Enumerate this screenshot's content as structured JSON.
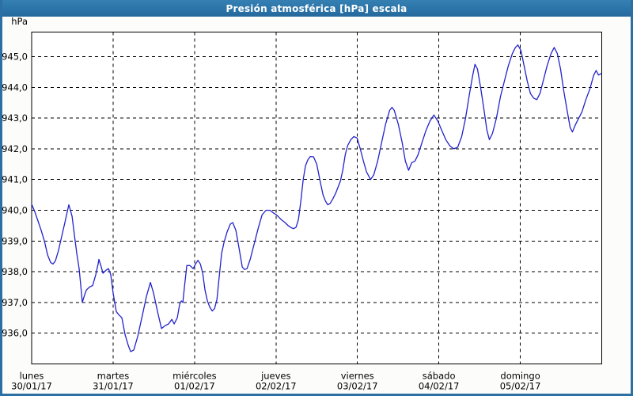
{
  "window": {
    "title": "Presión atmosférica [hPa] escala"
  },
  "colors": {
    "titlebar_bg": "#2b74a9",
    "titlebar_text": "#ffffff",
    "window_border": "#2b6fa3",
    "margin_bg": "#fcfdfa",
    "plot_bg": "#ffffff",
    "plot_border": "#000000",
    "gridline": "#000000",
    "line": "#2222cc",
    "label_text": "#000000"
  },
  "chart_data": {
    "type": "line",
    "title": "Presión atmosférica [hPa] escala",
    "ylabel": "hPa",
    "unit": "hPa",
    "decimal_separator": ",",
    "grid": "dashed",
    "legend": "none",
    "ylim": [
      935.0,
      945.8
    ],
    "yticks": [
      945,
      944,
      943,
      942,
      941,
      940,
      939,
      938,
      937,
      936
    ],
    "ytick_labels": [
      "945,0",
      "944,0",
      "943,0",
      "942,0",
      "941,0",
      "940,0",
      "939,0",
      "938,0",
      "937,0",
      "936,0"
    ],
    "x_axis": {
      "unit": "days",
      "range_days": [
        0,
        7
      ],
      "labels": [
        {
          "day": "lunes",
          "date": "30/01/17",
          "position": 0
        },
        {
          "day": "martes",
          "date": "31/01/17",
          "position": 1
        },
        {
          "day": "miércoles",
          "date": "01/02/17",
          "position": 2
        },
        {
          "day": "jueves",
          "date": "02/02/17",
          "position": 3
        },
        {
          "day": "viernes",
          "date": "03/02/17",
          "position": 4
        },
        {
          "day": "sábado",
          "date": "04/02/17",
          "position": 5
        },
        {
          "day": "domingo",
          "date": "05/02/17",
          "position": 6
        }
      ]
    },
    "series": [
      {
        "name": "Presión atmosférica [hPa]",
        "color": "#2222cc",
        "points": [
          [
            0.0,
            940.2
          ],
          [
            0.039,
            939.95
          ],
          [
            0.078,
            939.65
          ],
          [
            0.117,
            939.35
          ],
          [
            0.156,
            939.0
          ],
          [
            0.195,
            938.55
          ],
          [
            0.233,
            938.3
          ],
          [
            0.262,
            938.25
          ],
          [
            0.291,
            938.35
          ],
          [
            0.33,
            938.7
          ],
          [
            0.369,
            939.15
          ],
          [
            0.408,
            939.6
          ],
          [
            0.437,
            939.95
          ],
          [
            0.457,
            940.18
          ],
          [
            0.476,
            940.0
          ],
          [
            0.496,
            939.8
          ],
          [
            0.525,
            939.2
          ],
          [
            0.554,
            938.6
          ],
          [
            0.583,
            938.1
          ],
          [
            0.612,
            937.3
          ],
          [
            0.622,
            937.0
          ],
          [
            0.651,
            937.25
          ],
          [
            0.671,
            937.4
          ],
          [
            0.71,
            937.5
          ],
          [
            0.749,
            937.55
          ],
          [
            0.787,
            937.9
          ],
          [
            0.816,
            938.25
          ],
          [
            0.826,
            938.4
          ],
          [
            0.855,
            938.15
          ],
          [
            0.875,
            937.95
          ],
          [
            0.914,
            938.05
          ],
          [
            0.943,
            938.1
          ],
          [
            0.972,
            937.9
          ],
          [
            1.001,
            937.3
          ],
          [
            1.04,
            936.7
          ],
          [
            1.069,
            936.6
          ],
          [
            1.108,
            936.5
          ],
          [
            1.147,
            935.95
          ],
          [
            1.186,
            935.6
          ],
          [
            1.215,
            935.4
          ],
          [
            1.254,
            935.45
          ],
          [
            1.303,
            935.9
          ],
          [
            1.361,
            936.6
          ],
          [
            1.41,
            937.2
          ],
          [
            1.458,
            937.65
          ],
          [
            1.497,
            937.3
          ],
          [
            1.546,
            936.7
          ],
          [
            1.594,
            936.15
          ],
          [
            1.643,
            936.25
          ],
          [
            1.682,
            936.3
          ],
          [
            1.721,
            936.45
          ],
          [
            1.75,
            936.3
          ],
          [
            1.789,
            936.5
          ],
          [
            1.818,
            936.95
          ],
          [
            1.838,
            937.05
          ],
          [
            1.857,
            937.0
          ],
          [
            1.876,
            937.5
          ],
          [
            1.905,
            938.2
          ],
          [
            1.944,
            938.2
          ],
          [
            1.983,
            938.1
          ],
          [
            2.013,
            938.25
          ],
          [
            2.042,
            938.37
          ],
          [
            2.071,
            938.25
          ],
          [
            2.1,
            937.95
          ],
          [
            2.129,
            937.4
          ],
          [
            2.158,
            937.05
          ],
          [
            2.187,
            936.85
          ],
          [
            2.217,
            936.72
          ],
          [
            2.246,
            936.8
          ],
          [
            2.275,
            937.1
          ],
          [
            2.304,
            937.85
          ],
          [
            2.333,
            938.6
          ],
          [
            2.362,
            938.95
          ],
          [
            2.401,
            939.3
          ],
          [
            2.44,
            939.55
          ],
          [
            2.469,
            939.6
          ],
          [
            2.508,
            939.35
          ],
          [
            2.547,
            938.75
          ],
          [
            2.586,
            938.15
          ],
          [
            2.615,
            938.07
          ],
          [
            2.645,
            938.1
          ],
          [
            2.683,
            938.4
          ],
          [
            2.732,
            938.9
          ],
          [
            2.781,
            939.4
          ],
          [
            2.829,
            939.85
          ],
          [
            2.878,
            940.0
          ],
          [
            2.926,
            940.0
          ],
          [
            2.975,
            939.9
          ],
          [
            3.007,
            939.85
          ],
          [
            3.062,
            939.7
          ],
          [
            3.111,
            939.6
          ],
          [
            3.15,
            939.5
          ],
          [
            3.189,
            939.43
          ],
          [
            3.218,
            939.4
          ],
          [
            3.247,
            939.45
          ],
          [
            3.276,
            939.7
          ],
          [
            3.305,
            940.3
          ],
          [
            3.334,
            941.0
          ],
          [
            3.363,
            941.45
          ],
          [
            3.393,
            941.65
          ],
          [
            3.422,
            941.75
          ],
          [
            3.461,
            941.74
          ],
          [
            3.5,
            941.5
          ],
          [
            3.548,
            940.87
          ],
          [
            3.578,
            940.5
          ],
          [
            3.607,
            940.3
          ],
          [
            3.636,
            940.18
          ],
          [
            3.665,
            940.22
          ],
          [
            3.694,
            940.35
          ],
          [
            3.733,
            940.55
          ],
          [
            3.762,
            940.75
          ],
          [
            3.791,
            940.95
          ],
          [
            3.82,
            941.3
          ],
          [
            3.85,
            941.8
          ],
          [
            3.879,
            942.1
          ],
          [
            3.918,
            942.3
          ],
          [
            3.957,
            942.4
          ],
          [
            3.996,
            942.35
          ],
          [
            4.035,
            942.0
          ],
          [
            4.074,
            941.6
          ],
          [
            4.112,
            941.25
          ],
          [
            4.161,
            941.0
          ],
          [
            4.2,
            941.15
          ],
          [
            4.249,
            941.6
          ],
          [
            4.297,
            942.2
          ],
          [
            4.346,
            942.8
          ],
          [
            4.395,
            943.25
          ],
          [
            4.424,
            943.35
          ],
          [
            4.453,
            943.25
          ],
          [
            4.502,
            942.8
          ],
          [
            4.55,
            942.2
          ],
          [
            4.589,
            941.6
          ],
          [
            4.628,
            941.3
          ],
          [
            4.667,
            941.55
          ],
          [
            4.706,
            941.6
          ],
          [
            4.744,
            941.8
          ],
          [
            4.793,
            942.2
          ],
          [
            4.842,
            942.6
          ],
          [
            4.89,
            942.9
          ],
          [
            4.939,
            943.1
          ],
          [
            4.988,
            942.9
          ],
          [
            5.036,
            942.6
          ],
          [
            5.085,
            942.3
          ],
          [
            5.134,
            942.1
          ],
          [
            5.182,
            942.0
          ],
          [
            5.231,
            942.05
          ],
          [
            5.28,
            942.4
          ],
          [
            5.328,
            943.0
          ],
          [
            5.377,
            943.8
          ],
          [
            5.416,
            944.4
          ],
          [
            5.444,
            944.75
          ],
          [
            5.474,
            944.6
          ],
          [
            5.513,
            944.0
          ],
          [
            5.552,
            943.3
          ],
          [
            5.59,
            942.6
          ],
          [
            5.62,
            942.3
          ],
          [
            5.658,
            942.5
          ],
          [
            5.707,
            943.0
          ],
          [
            5.756,
            943.7
          ],
          [
            5.804,
            944.2
          ],
          [
            5.853,
            944.7
          ],
          [
            5.902,
            945.1
          ],
          [
            5.94,
            945.3
          ],
          [
            5.97,
            945.38
          ],
          [
            6.008,
            945.2
          ],
          [
            6.047,
            944.7
          ],
          [
            6.086,
            944.2
          ],
          [
            6.125,
            943.8
          ],
          [
            6.164,
            943.65
          ],
          [
            6.202,
            943.6
          ],
          [
            6.241,
            943.8
          ],
          [
            6.28,
            944.2
          ],
          [
            6.329,
            944.7
          ],
          [
            6.377,
            945.1
          ],
          [
            6.416,
            945.3
          ],
          [
            6.455,
            945.1
          ],
          [
            6.494,
            944.6
          ],
          [
            6.533,
            943.9
          ],
          [
            6.572,
            943.3
          ],
          [
            6.611,
            942.7
          ],
          [
            6.64,
            942.55
          ],
          [
            6.679,
            942.8
          ],
          [
            6.718,
            943.0
          ],
          [
            6.757,
            943.2
          ],
          [
            6.805,
            943.6
          ],
          [
            6.854,
            943.95
          ],
          [
            6.902,
            944.4
          ],
          [
            6.931,
            944.55
          ],
          [
            6.96,
            944.4
          ],
          [
            6.99,
            944.45
          ]
        ]
      }
    ]
  }
}
